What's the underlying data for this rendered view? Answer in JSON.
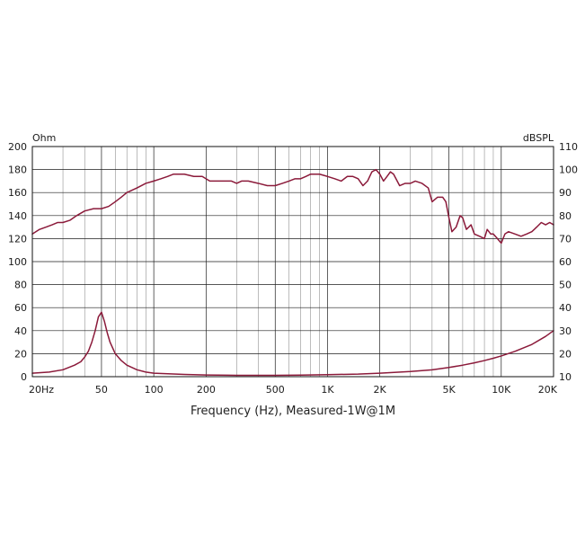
{
  "chart_data": {
    "type": "line",
    "xlabel": "Frequency (Hz), Measured-1W@1M",
    "x_scale": "log",
    "xlim": [
      20,
      20000
    ],
    "x_ticks": [
      {
        "value": 20,
        "label": "20Hz"
      },
      {
        "value": 50,
        "label": "50"
      },
      {
        "value": 100,
        "label": "100"
      },
      {
        "value": 200,
        "label": "200"
      },
      {
        "value": 500,
        "label": "500"
      },
      {
        "value": 1000,
        "label": "1K"
      },
      {
        "value": 2000,
        "label": "2K"
      },
      {
        "value": 5000,
        "label": "5K"
      },
      {
        "value": 10000,
        "label": "10K"
      },
      {
        "value": 20000,
        "label": "20K"
      }
    ],
    "y_left": {
      "unit_label": "Ohm",
      "ylim": [
        0,
        200
      ],
      "ticks": [
        "0",
        "20",
        "40",
        "60",
        "80",
        "100",
        "120",
        "140",
        "160",
        "180",
        "200"
      ]
    },
    "y_right": {
      "unit_label": "dBSPL",
      "ylim": [
        10,
        110
      ],
      "ticks": [
        "10",
        "20",
        "30",
        "40",
        "50",
        "60",
        "70",
        "80",
        "90",
        "100",
        "110"
      ]
    },
    "grid": true,
    "line_color": "#8b1a3a",
    "series": [
      {
        "axis": "right",
        "points": [
          [
            20,
            72
          ],
          [
            22,
            74
          ],
          [
            24,
            75
          ],
          [
            26,
            76
          ],
          [
            28,
            77
          ],
          [
            30,
            77
          ],
          [
            33,
            78
          ],
          [
            36,
            80
          ],
          [
            40,
            82
          ],
          [
            45,
            83
          ],
          [
            50,
            83
          ],
          [
            55,
            84
          ],
          [
            60,
            86
          ],
          [
            65,
            88
          ],
          [
            70,
            90
          ],
          [
            80,
            92
          ],
          [
            90,
            94
          ],
          [
            100,
            95
          ],
          [
            110,
            96
          ],
          [
            120,
            97
          ],
          [
            130,
            98
          ],
          [
            150,
            98
          ],
          [
            170,
            97
          ],
          [
            190,
            97
          ],
          [
            210,
            95
          ],
          [
            240,
            95
          ],
          [
            280,
            95
          ],
          [
            300,
            94
          ],
          [
            320,
            95
          ],
          [
            350,
            95
          ],
          [
            400,
            94
          ],
          [
            450,
            93
          ],
          [
            500,
            93
          ],
          [
            550,
            94
          ],
          [
            600,
            95
          ],
          [
            650,
            96
          ],
          [
            700,
            96
          ],
          [
            750,
            97
          ],
          [
            800,
            98
          ],
          [
            850,
            98
          ],
          [
            900,
            98
          ],
          [
            1000,
            97
          ],
          [
            1100,
            96
          ],
          [
            1200,
            95
          ],
          [
            1300,
            97
          ],
          [
            1400,
            97
          ],
          [
            1500,
            96
          ],
          [
            1600,
            93
          ],
          [
            1700,
            95
          ],
          [
            1800,
            99
          ],
          [
            1900,
            100
          ],
          [
            2000,
            98
          ],
          [
            2100,
            95
          ],
          [
            2200,
            97
          ],
          [
            2300,
            99
          ],
          [
            2400,
            98
          ],
          [
            2600,
            93
          ],
          [
            2800,
            94
          ],
          [
            3000,
            94
          ],
          [
            3200,
            95
          ],
          [
            3500,
            94
          ],
          [
            3800,
            92
          ],
          [
            4000,
            86
          ],
          [
            4300,
            88
          ],
          [
            4600,
            88
          ],
          [
            4800,
            86
          ],
          [
            5000,
            79
          ],
          [
            5200,
            73
          ],
          [
            5500,
            75
          ],
          [
            5800,
            80
          ],
          [
            6000,
            79
          ],
          [
            6300,
            74
          ],
          [
            6700,
            76
          ],
          [
            7000,
            72
          ],
          [
            7500,
            71
          ],
          [
            8000,
            70
          ],
          [
            8300,
            74
          ],
          [
            8700,
            72
          ],
          [
            9000,
            72
          ],
          [
            9500,
            70
          ],
          [
            10000,
            68
          ],
          [
            10500,
            72
          ],
          [
            11000,
            73
          ],
          [
            12000,
            72
          ],
          [
            13000,
            71
          ],
          [
            14000,
            72
          ],
          [
            15000,
            73
          ],
          [
            16000,
            75
          ],
          [
            17000,
            77
          ],
          [
            18000,
            76
          ],
          [
            19000,
            77
          ],
          [
            20000,
            76
          ]
        ]
      },
      {
        "axis": "left",
        "points": [
          [
            20,
            3
          ],
          [
            25,
            4
          ],
          [
            30,
            6
          ],
          [
            35,
            10
          ],
          [
            38,
            13
          ],
          [
            40,
            17
          ],
          [
            42,
            22
          ],
          [
            44,
            30
          ],
          [
            46,
            40
          ],
          [
            48,
            52
          ],
          [
            50,
            56
          ],
          [
            52,
            48
          ],
          [
            54,
            38
          ],
          [
            56,
            30
          ],
          [
            60,
            20
          ],
          [
            65,
            14
          ],
          [
            70,
            10
          ],
          [
            80,
            6
          ],
          [
            90,
            4
          ],
          [
            100,
            3
          ],
          [
            150,
            2
          ],
          [
            200,
            1.5
          ],
          [
            300,
            1.2
          ],
          [
            500,
            1.2
          ],
          [
            700,
            1.4
          ],
          [
            1000,
            1.8
          ],
          [
            1500,
            2.2
          ],
          [
            2000,
            3
          ],
          [
            3000,
            4.5
          ],
          [
            4000,
            6
          ],
          [
            5000,
            8
          ],
          [
            6000,
            10
          ],
          [
            7000,
            12
          ],
          [
            8000,
            14
          ],
          [
            9000,
            16
          ],
          [
            10000,
            18
          ],
          [
            12000,
            22
          ],
          [
            15000,
            28
          ],
          [
            18000,
            35
          ],
          [
            20000,
            40
          ]
        ]
      }
    ]
  }
}
